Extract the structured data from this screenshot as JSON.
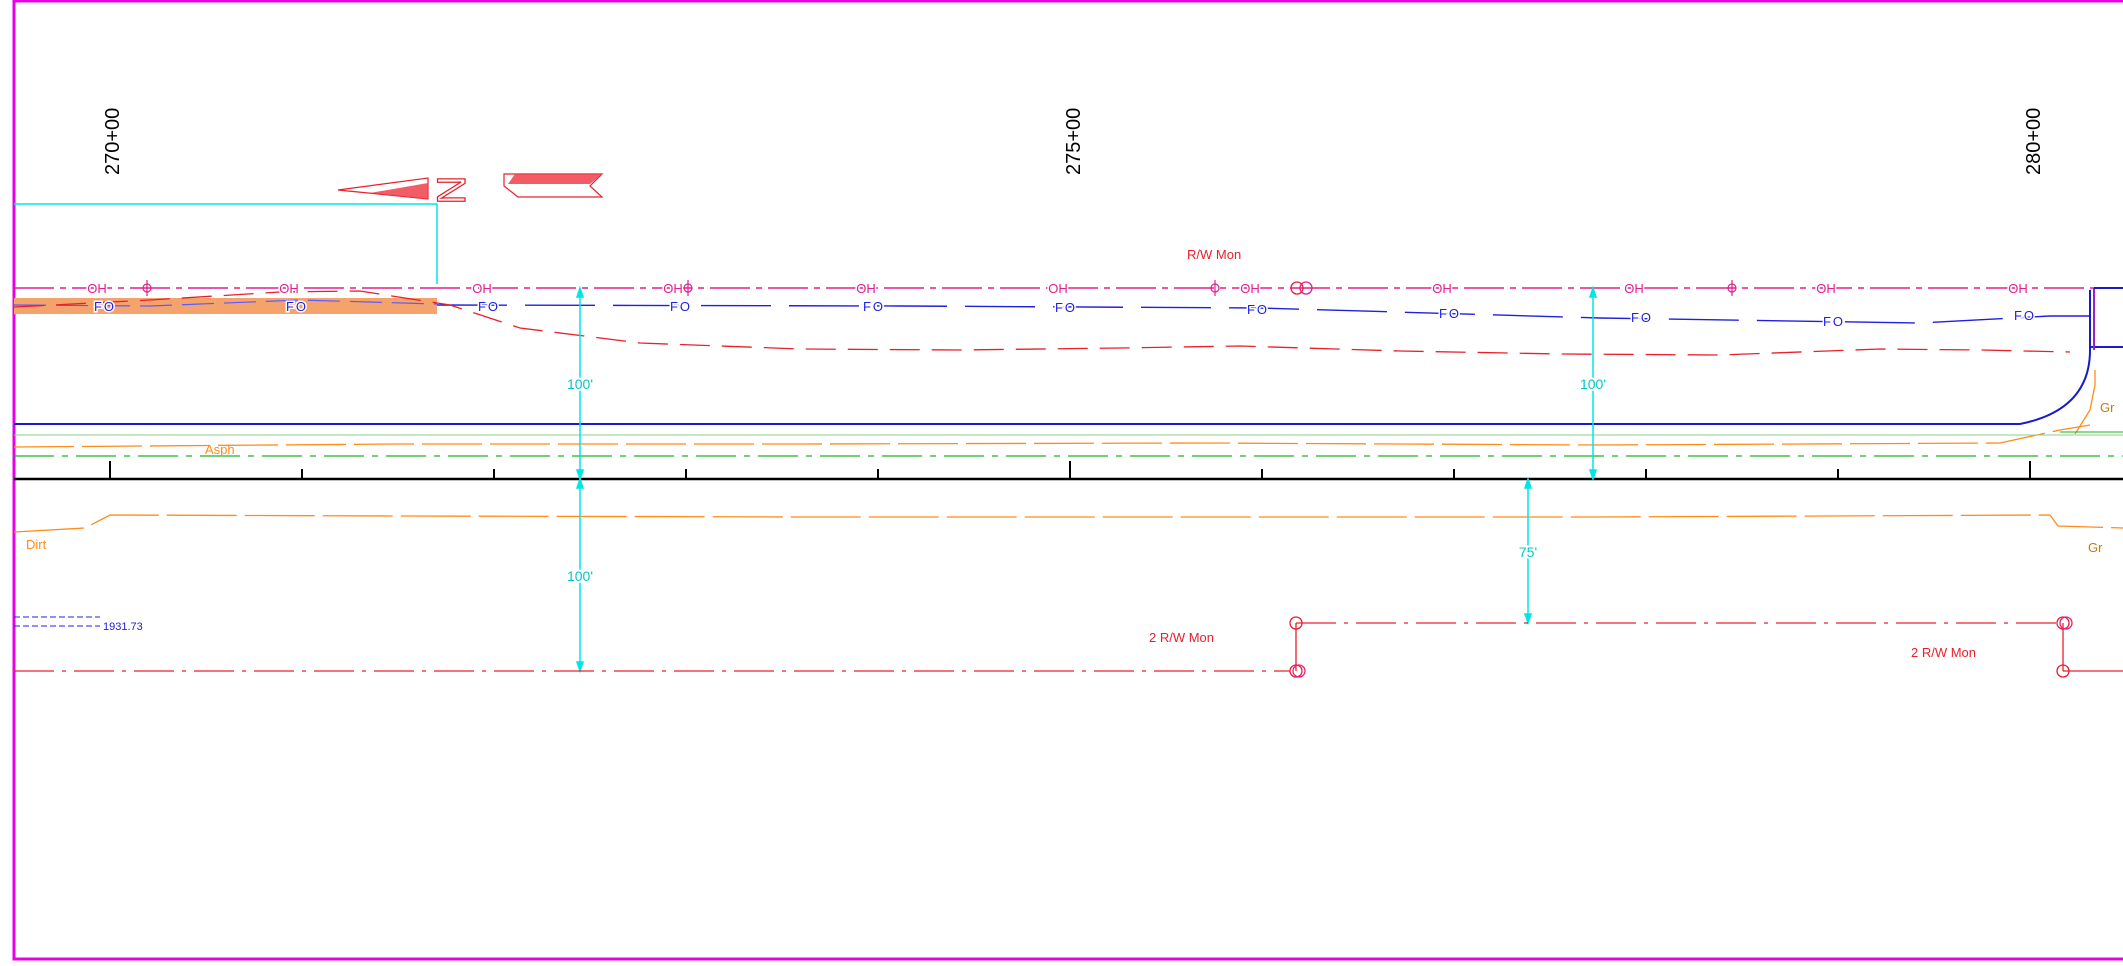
{
  "stations": [
    "270+00",
    "275+00",
    "280+00"
  ],
  "labels": {
    "rw_mon_top": "R/W Mon",
    "rw_mon_bottom_left": "2 R/W Mon",
    "rw_mon_bottom_right": "2 R/W Mon",
    "asph": "Asph",
    "dirt": "Dirt",
    "gr_upper": "Gr",
    "gr_lower": "Gr",
    "elevation": "1931.73"
  },
  "dimensions": {
    "left_upper": "100'",
    "left_lower": "100'",
    "right_upper": "100'",
    "right_lower": "75'"
  },
  "utility_labels": {
    "overhead": "OH",
    "fiber_optic": "FO"
  },
  "north_arrow_letter": "N",
  "colors": {
    "border": "#e600e6",
    "overhead": "#e0208c",
    "fiber_optic": "#2020e0",
    "row_line": "#e8202c",
    "dimension": "#00e5e5",
    "edge_of_pavement": "#ff8c1a",
    "centerline": "#000000",
    "road_edge": "#1a1acc",
    "green_line": "#22b022",
    "highlight": "#f5a36c"
  }
}
